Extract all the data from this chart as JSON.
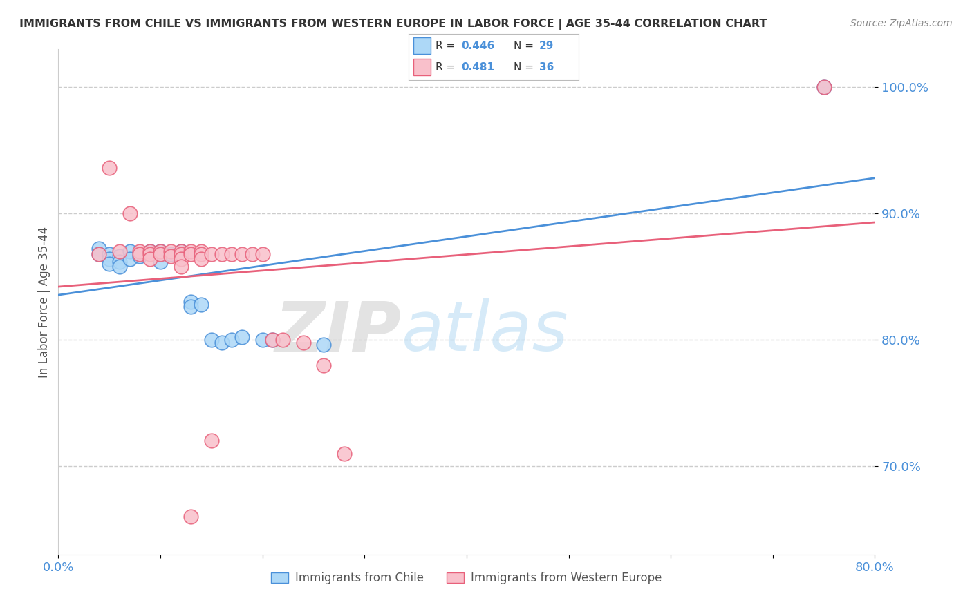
{
  "title": "IMMIGRANTS FROM CHILE VS IMMIGRANTS FROM WESTERN EUROPE IN LABOR FORCE | AGE 35-44 CORRELATION CHART",
  "source": "Source: ZipAtlas.com",
  "ylabel": "In Labor Force | Age 35-44",
  "xlim": [
    0.0,
    0.8
  ],
  "ylim": [
    0.63,
    1.03
  ],
  "xtick_labels": [
    "0.0%",
    "",
    "",
    "",
    "",
    "",
    "",
    "",
    "80.0%"
  ],
  "xtick_values": [
    0.0,
    0.1,
    0.2,
    0.3,
    0.4,
    0.5,
    0.6,
    0.7,
    0.8
  ],
  "ytick_labels": [
    "100.0%",
    "90.0%",
    "80.0%",
    "70.0%"
  ],
  "ytick_values": [
    1.0,
    0.9,
    0.8,
    0.7
  ],
  "legend_r_blue": "0.446",
  "legend_n_blue": "29",
  "legend_r_pink": "0.481",
  "legend_n_pink": "36",
  "blue_scatter_x": [
    0.04,
    0.04,
    0.05,
    0.05,
    0.05,
    0.06,
    0.06,
    0.06,
    0.07,
    0.07,
    0.08,
    0.09,
    0.1,
    0.1,
    0.1,
    0.11,
    0.12,
    0.12,
    0.13,
    0.13,
    0.14,
    0.15,
    0.16,
    0.17,
    0.18,
    0.2,
    0.21,
    0.26,
    0.75
  ],
  "blue_scatter_y": [
    0.872,
    0.868,
    0.868,
    0.864,
    0.86,
    0.866,
    0.862,
    0.858,
    0.87,
    0.864,
    0.866,
    0.87,
    0.87,
    0.868,
    0.862,
    0.868,
    0.868,
    0.87,
    0.83,
    0.826,
    0.828,
    0.8,
    0.798,
    0.8,
    0.802,
    0.8,
    0.8,
    0.796,
    1.0
  ],
  "pink_scatter_x": [
    0.04,
    0.05,
    0.06,
    0.07,
    0.08,
    0.08,
    0.09,
    0.09,
    0.09,
    0.1,
    0.1,
    0.11,
    0.11,
    0.12,
    0.12,
    0.12,
    0.12,
    0.13,
    0.13,
    0.14,
    0.14,
    0.14,
    0.15,
    0.16,
    0.17,
    0.18,
    0.19,
    0.2,
    0.21,
    0.22,
    0.24,
    0.26,
    0.28,
    0.15,
    0.13,
    0.75
  ],
  "pink_scatter_y": [
    0.868,
    0.936,
    0.87,
    0.9,
    0.87,
    0.868,
    0.87,
    0.868,
    0.864,
    0.87,
    0.868,
    0.87,
    0.866,
    0.87,
    0.868,
    0.864,
    0.858,
    0.87,
    0.868,
    0.87,
    0.868,
    0.864,
    0.868,
    0.868,
    0.868,
    0.868,
    0.868,
    0.868,
    0.8,
    0.8,
    0.798,
    0.78,
    0.71,
    0.72,
    0.66,
    1.0
  ],
  "blue_color": "#ADD8F7",
  "pink_color": "#F9C0CB",
  "blue_edge_color": "#4A90D9",
  "pink_edge_color": "#E8607A",
  "blue_line_color": "#4A90D9",
  "pink_line_color": "#E8607A",
  "tick_color": "#4A90D9",
  "grid_color": "#CCCCCC",
  "bg_color": "#FFFFFF",
  "title_color": "#333333",
  "source_color": "#888888",
  "label_color": "#555555"
}
